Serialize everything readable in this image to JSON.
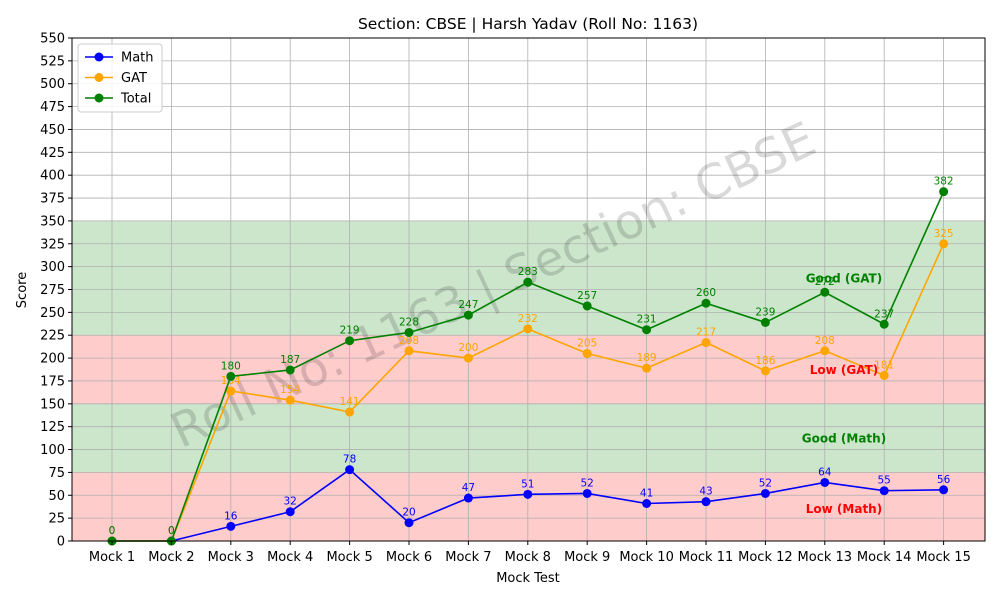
{
  "chart_data": {
    "type": "line",
    "title": "Section: CBSE | Harsh Yadav (Roll No: 1163)",
    "xlabel": "Mock Test",
    "ylabel": "Score",
    "ylim": [
      0,
      550
    ],
    "ytick_step": 25,
    "grid": true,
    "legend": "top-left",
    "watermark": "Roll No: 1163 | Section: CBSE",
    "categories": [
      "Mock 1",
      "Mock 2",
      "Mock 3",
      "Mock 4",
      "Mock 5",
      "Mock 6",
      "Mock 7",
      "Mock 8",
      "Mock 9",
      "Mock 10",
      "Mock 11",
      "Mock 12",
      "Mock 13",
      "Mock 14",
      "Mock 15"
    ],
    "series": [
      {
        "name": "Math",
        "color": "#0000ff",
        "values": [
          0,
          0,
          16,
          32,
          78,
          20,
          47,
          51,
          52,
          41,
          43,
          52,
          64,
          55,
          56
        ]
      },
      {
        "name": "GAT",
        "color": "#ffa500",
        "values": [
          0,
          0,
          164,
          154,
          141,
          208,
          200,
          232,
          205,
          189,
          217,
          186,
          208,
          181,
          325
        ]
      },
      {
        "name": "Total",
        "color": "#008000",
        "values": [
          0,
          0,
          180,
          187,
          219,
          228,
          247,
          283,
          257,
          231,
          260,
          239,
          272,
          237,
          382
        ]
      }
    ],
    "bands": [
      {
        "from": 0,
        "to": 75,
        "color": "#ffcccc",
        "label": "Low (Math)",
        "label_color": "#ff0000",
        "label_y": 35
      },
      {
        "from": 75,
        "to": 150,
        "color": "#cce6cc",
        "label": "Good (Math)",
        "label_color": "#008000",
        "label_y": 112
      },
      {
        "from": 150,
        "to": 225,
        "color": "#ffcccc",
        "label": "Low (GAT)",
        "label_color": "#ff0000",
        "label_y": 187
      },
      {
        "from": 225,
        "to": 350,
        "color": "#cce6cc",
        "label": "Good (GAT)",
        "label_color": "#008000",
        "label_y": 287
      }
    ]
  }
}
